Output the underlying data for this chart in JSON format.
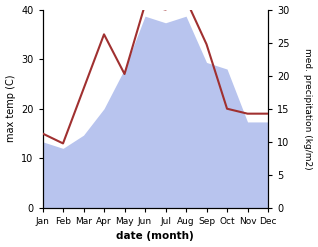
{
  "months": [
    "Jan",
    "Feb",
    "Mar",
    "Apr",
    "May",
    "Jun",
    "Jul",
    "Aug",
    "Sep",
    "Oct",
    "Nov",
    "Dec"
  ],
  "temp": [
    15,
    13,
    24,
    35,
    27,
    41,
    40,
    42,
    33,
    20,
    19,
    19
  ],
  "precip": [
    10,
    9,
    11,
    15,
    21,
    29,
    28,
    29,
    22,
    21,
    13,
    13
  ],
  "temp_color": "#a03030",
  "precip_color": "#b8c4ee",
  "left_label": "max temp (C)",
  "right_label": "med. precipitation (kg/m2)",
  "xlabel": "date (month)",
  "ylim_left": [
    0,
    40
  ],
  "ylim_right": [
    0,
    30
  ],
  "yticks_left": [
    0,
    10,
    20,
    30,
    40
  ],
  "yticks_right": [
    0,
    5,
    10,
    15,
    20,
    25,
    30
  ],
  "bg_color": "#ffffff",
  "fig_width": 3.18,
  "fig_height": 2.47,
  "dpi": 100
}
